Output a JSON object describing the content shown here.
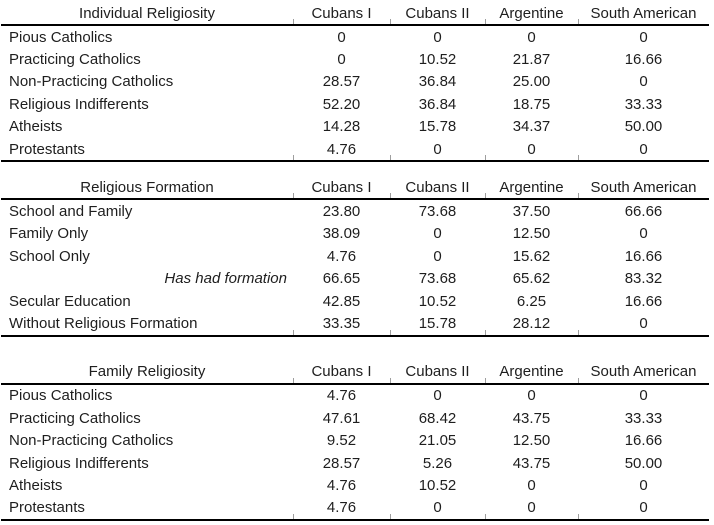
{
  "page": {
    "background_color": "#ffffff",
    "text_color": "#1e1e1e",
    "rule_color": "#000000"
  },
  "tables": [
    {
      "title": "Individual Religiosity",
      "columns": [
        "Cubans I",
        "Cubans II",
        "Argentine",
        "South American"
      ],
      "rows": [
        {
          "label": "Pious Catholics",
          "values": [
            "0",
            "0",
            "0",
            "0"
          ]
        },
        {
          "label": "Practicing Catholics",
          "values": [
            "0",
            "10.52",
            "21.87",
            "16.66"
          ]
        },
        {
          "label": "Non-Practicing Catholics",
          "values": [
            "28.57",
            "36.84",
            "25.00",
            "0"
          ]
        },
        {
          "label": "Religious Indifferents",
          "values": [
            "52.20",
            "36.84",
            "18.75",
            "33.33"
          ]
        },
        {
          "label": "Atheists",
          "values": [
            "14.28",
            "15.78",
            "34.37",
            "50.00"
          ]
        },
        {
          "label": "Protestants",
          "values": [
            "4.76",
            "0",
            "0",
            "0"
          ]
        }
      ]
    },
    {
      "title": "Religious Formation",
      "columns": [
        "Cubans I",
        "Cubans II",
        "Argentine",
        "South American"
      ],
      "rows": [
        {
          "label": "School and Family",
          "values": [
            "23.80",
            "73.68",
            "37.50",
            "66.66"
          ]
        },
        {
          "label": "Family Only",
          "values": [
            "38.09",
            "0",
            "12.50",
            "0"
          ]
        },
        {
          "label": "School Only",
          "values": [
            "4.76",
            "0",
            "15.62",
            "16.66"
          ]
        },
        {
          "label": "Has had formation",
          "summary_row": true,
          "values": [
            "66.65",
            "73.68",
            "65.62",
            "83.32"
          ]
        },
        {
          "label": "Secular Education",
          "values": [
            "42.85",
            "10.52",
            "6.25",
            "16.66"
          ]
        },
        {
          "label": "Without Religious Formation",
          "values": [
            "33.35",
            "15.78",
            "28.12",
            "0"
          ]
        }
      ]
    },
    {
      "title": "Family Religiosity",
      "columns": [
        "Cubans I",
        "Cubans II",
        "Argentine",
        "South American"
      ],
      "rows": [
        {
          "label": "Pious Catholics",
          "values": [
            "4.76",
            "0",
            "0",
            "0"
          ]
        },
        {
          "label": "Practicing Catholics",
          "values": [
            "47.61",
            "68.42",
            "43.75",
            "33.33"
          ]
        },
        {
          "label": "Non-Practicing Catholics",
          "values": [
            "9.52",
            "21.05",
            "12.50",
            "16.66"
          ]
        },
        {
          "label": "Religious Indifferents",
          "values": [
            "28.57",
            "5.26",
            "43.75",
            "50.00"
          ]
        },
        {
          "label": "Atheists",
          "values": [
            "4.76",
            "10.52",
            "0",
            "0"
          ]
        },
        {
          "label": "Protestants",
          "values": [
            "4.76",
            "0",
            "0",
            "0"
          ]
        }
      ]
    }
  ]
}
